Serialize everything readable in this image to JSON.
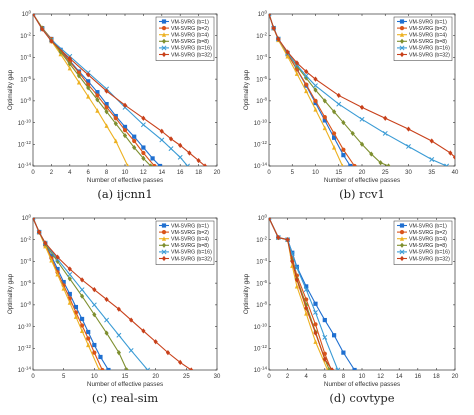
{
  "figure": {
    "legend_entries": [
      "VM-SVRG (b=1)",
      "VM-SVRG (b=2)",
      "VM-SVRG (b=4)",
      "VM-SVRG (b=8)",
      "VM-SVRG (b=16)",
      "VM-SVRG (b=32)"
    ],
    "series_colors": [
      "#1f6fd0",
      "#d95319",
      "#edb120",
      "#7e8f2f",
      "#3a9bd5",
      "#c8401a"
    ],
    "marker_shapes": [
      "square",
      "circle",
      "triangle",
      "diamond",
      "x",
      "diamond"
    ]
  },
  "chart_data": [
    {
      "type": "line",
      "caption": "(a)  ijcnn1",
      "xlabel": "Number of effective passes",
      "ylabel": "Optimality gap",
      "xlim": [
        0,
        20
      ],
      "ylim_log10": [
        -14,
        0
      ],
      "xticks": [
        "0",
        "2",
        "4",
        "6",
        "8",
        "10",
        "12",
        "14",
        "16",
        "18",
        "20"
      ],
      "yticks": [
        "10^0",
        "10^-2",
        "10^-4",
        "10^-6",
        "10^-8",
        "10^-10",
        "10^-12",
        "10^-14"
      ],
      "y_scale": "log",
      "legend": "top-right",
      "series": [
        {
          "name": "VM-SVRG (b=1)",
          "x": [
            0,
            1,
            2,
            3,
            4,
            5,
            6,
            7,
            8,
            9,
            10,
            11,
            12,
            13,
            13.8
          ],
          "y_log10": [
            0,
            -1.3,
            -2.3,
            -3.3,
            -4.3,
            -5.3,
            -6.2,
            -7.2,
            -8.3,
            -9.4,
            -10.4,
            -11.3,
            -12.3,
            -13.3,
            -14
          ]
        },
        {
          "name": "VM-SVRG (b=2)",
          "x": [
            0,
            1,
            2,
            3,
            4,
            5,
            6,
            7,
            8,
            9,
            10,
            11,
            12,
            13.2
          ],
          "y_log10": [
            0,
            -1.3,
            -2.3,
            -3.4,
            -4.4,
            -5.4,
            -6.5,
            -7.5,
            -8.6,
            -9.6,
            -10.7,
            -11.7,
            -12.8,
            -14
          ]
        },
        {
          "name": "VM-SVRG (b=4)",
          "x": [
            0,
            1,
            2,
            3,
            4,
            5,
            6,
            7,
            8,
            9,
            10.3
          ],
          "y_log10": [
            0,
            -1.3,
            -2.5,
            -3.7,
            -5,
            -6.3,
            -7.6,
            -8.9,
            -10.3,
            -11.7,
            -14
          ]
        },
        {
          "name": "VM-SVRG (b=8)",
          "x": [
            0,
            1,
            2,
            3,
            4,
            5,
            6,
            7,
            8,
            9,
            10,
            11,
            12,
            12.8
          ],
          "y_log10": [
            0,
            -1.3,
            -2.4,
            -3.5,
            -4.6,
            -5.7,
            -6.8,
            -7.9,
            -9,
            -10.1,
            -11.2,
            -12.3,
            -13.3,
            -14
          ]
        },
        {
          "name": "VM-SVRG (b=16)",
          "x": [
            0,
            1,
            2,
            4,
            6,
            8,
            10,
            12,
            14,
            15,
            16,
            16.8
          ],
          "y_log10": [
            0,
            -1.4,
            -2.4,
            -3.9,
            -5.4,
            -6.9,
            -8.6,
            -10.2,
            -11.6,
            -12.4,
            -13.2,
            -14
          ]
        },
        {
          "name": "VM-SVRG (b=32)",
          "x": [
            0,
            1,
            2,
            4,
            6,
            8,
            10,
            12,
            14,
            15,
            16,
            17,
            18,
            18.7
          ],
          "y_log10": [
            0,
            -1.4,
            -2.5,
            -4.1,
            -5.6,
            -7.1,
            -8.4,
            -9.6,
            -10.8,
            -11.5,
            -12.1,
            -12.8,
            -13.5,
            -14
          ]
        }
      ]
    },
    {
      "type": "line",
      "caption": "(b)  rcv1",
      "xlabel": "Number of effective passes",
      "ylabel": "Optimality gap",
      "xlim": [
        0,
        40
      ],
      "ylim_log10": [
        -14,
        0
      ],
      "xticks": [
        "0",
        "5",
        "10",
        "15",
        "20",
        "25",
        "30",
        "35",
        "40"
      ],
      "yticks": [
        "10^0",
        "10^-2",
        "10^-4",
        "10^-6",
        "10^-8",
        "10^-10",
        "10^-12",
        "10^-14"
      ],
      "y_scale": "log",
      "legend": "top-right",
      "series": [
        {
          "name": "VM-SVRG (b=1)",
          "x": [
            0,
            1,
            2,
            4,
            6,
            8,
            10,
            12,
            14,
            16,
            17.5
          ],
          "y_log10": [
            0,
            -1.3,
            -2.3,
            -3.7,
            -5.1,
            -6.6,
            -8.2,
            -9.8,
            -11.4,
            -13,
            -14
          ]
        },
        {
          "name": "VM-SVRG (b=2)",
          "x": [
            0,
            1,
            2,
            4,
            6,
            8,
            10,
            12,
            14,
            16,
            18.4
          ],
          "y_log10": [
            0,
            -1.3,
            -2.3,
            -3.7,
            -5.1,
            -6.5,
            -8,
            -9.5,
            -11,
            -12.5,
            -14
          ]
        },
        {
          "name": "VM-SVRG (b=4)",
          "x": [
            0,
            1,
            2,
            4,
            6,
            8,
            10,
            12,
            14,
            15.8
          ],
          "y_log10": [
            0,
            -1.3,
            -2.4,
            -3.9,
            -5.5,
            -7.1,
            -8.8,
            -10.5,
            -12.3,
            -14
          ]
        },
        {
          "name": "VM-SVRG (b=8)",
          "x": [
            0,
            1,
            2,
            4,
            6,
            8,
            10,
            12,
            14,
            16,
            18,
            20,
            22,
            24,
            25.7
          ],
          "y_log10": [
            0,
            -1.3,
            -2.3,
            -3.6,
            -4.8,
            -5.9,
            -7,
            -8,
            -9,
            -10,
            -11,
            -12,
            -12.9,
            -13.7,
            -14
          ]
        },
        {
          "name": "VM-SVRG (b=16)",
          "x": [
            0,
            1,
            2,
            4,
            6,
            8,
            10,
            15,
            20,
            25,
            30,
            35,
            38.2
          ],
          "y_log10": [
            0,
            -1.3,
            -2.3,
            -3.6,
            -4.7,
            -5.7,
            -6.6,
            -8.3,
            -9.7,
            -11,
            -12.2,
            -13.4,
            -14
          ]
        },
        {
          "name": "VM-SVRG (b=32)",
          "x": [
            0,
            1,
            2,
            4,
            6,
            8,
            10,
            15,
            20,
            25,
            30,
            35,
            39,
            40
          ],
          "y_log10": [
            0,
            -1.3,
            -2.3,
            -3.5,
            -4.5,
            -5.3,
            -6,
            -7.5,
            -8.6,
            -9.6,
            -10.6,
            -11.7,
            -12.8,
            -13.2
          ]
        }
      ]
    },
    {
      "type": "line",
      "caption": "(c)  real-sim",
      "xlabel": "Number of effective passes",
      "ylabel": "Optimality gap",
      "xlim": [
        0,
        30
      ],
      "ylim_log10": [
        -14,
        0
      ],
      "xticks": [
        "0",
        "5",
        "10",
        "15",
        "20",
        "25",
        "30"
      ],
      "yticks": [
        "10^0",
        "10^-2",
        "10^-4",
        "10^-6",
        "10^-8",
        "10^-10",
        "10^-12",
        "10^-14"
      ],
      "y_scale": "log",
      "legend": "top-right",
      "series": [
        {
          "name": "VM-SVRG (b=1)",
          "x": [
            0,
            1,
            2,
            3,
            4,
            5,
            6,
            7,
            8,
            9,
            10,
            11,
            12.3
          ],
          "y_log10": [
            0,
            -1.3,
            -2.4,
            -3.5,
            -4.7,
            -5.9,
            -7,
            -8.2,
            -9.3,
            -10.5,
            -11.7,
            -12.8,
            -14
          ]
        },
        {
          "name": "VM-SVRG (b=2)",
          "x": [
            0,
            1,
            2,
            3,
            4,
            5,
            6,
            7,
            8,
            9,
            10,
            11.3
          ],
          "y_log10": [
            0,
            -1.3,
            -2.5,
            -3.7,
            -5,
            -6.2,
            -7.4,
            -8.7,
            -9.9,
            -11.1,
            -12.4,
            -14
          ]
        },
        {
          "name": "VM-SVRG (b=4)",
          "x": [
            0,
            1,
            2,
            3,
            4,
            5,
            6,
            7,
            8,
            9,
            10.8
          ],
          "y_log10": [
            0,
            -1.3,
            -2.6,
            -3.9,
            -5.2,
            -6.5,
            -7.8,
            -9.1,
            -10.4,
            -11.7,
            -14
          ]
        },
        {
          "name": "VM-SVRG (b=8)",
          "x": [
            0,
            1,
            2,
            4,
            6,
            8,
            10,
            12,
            14,
            15.3
          ],
          "y_log10": [
            0,
            -1.3,
            -2.4,
            -4,
            -5.6,
            -7.2,
            -8.9,
            -10.6,
            -12.4,
            -14
          ]
        },
        {
          "name": "VM-SVRG (b=16)",
          "x": [
            0,
            1,
            2,
            4,
            6,
            8,
            10,
            12,
            14,
            16,
            18.7
          ],
          "y_log10": [
            0,
            -1.3,
            -2.3,
            -3.8,
            -5.2,
            -6.6,
            -8,
            -9.4,
            -10.8,
            -12.2,
            -14
          ]
        },
        {
          "name": "VM-SVRG (b=32)",
          "x": [
            0,
            1,
            2,
            4,
            6,
            8,
            10,
            12,
            14,
            16,
            18,
            20,
            22,
            24,
            25.8
          ],
          "y_log10": [
            0,
            -1.3,
            -2.3,
            -3.6,
            -4.7,
            -5.7,
            -6.6,
            -7.5,
            -8.4,
            -9.4,
            -10.4,
            -11.4,
            -12.4,
            -13.3,
            -14
          ]
        }
      ]
    },
    {
      "type": "line",
      "caption": "(d)  covtype",
      "xlabel": "Number of effective passes",
      "ylabel": "Optimality gap",
      "xlim": [
        0,
        20
      ],
      "ylim_log10": [
        -14,
        0
      ],
      "xticks": [
        "0",
        "2",
        "4",
        "6",
        "8",
        "10",
        "12",
        "14",
        "16",
        "18",
        "20"
      ],
      "yticks": [
        "10^0",
        "10^-2",
        "10^-4",
        "10^-6",
        "10^-8",
        "10^-10",
        "10^-12",
        "10^-14"
      ],
      "y_scale": "log",
      "legend": "top-right",
      "series": [
        {
          "name": "VM-SVRG (b=1)",
          "x": [
            0,
            1,
            2,
            2.5,
            3,
            4,
            5,
            6,
            7,
            8,
            9.2
          ],
          "y_log10": [
            0,
            -1.8,
            -2,
            -3.2,
            -4.5,
            -6.3,
            -7.9,
            -9.4,
            -10.8,
            -12.4,
            -14
          ]
        },
        {
          "name": "VM-SVRG (b=2)",
          "x": [
            0,
            1,
            2,
            2.5,
            3,
            4,
            5,
            6,
            6.7
          ],
          "y_log10": [
            0,
            -1.8,
            -2,
            -3.7,
            -5.3,
            -7.5,
            -9.8,
            -12.5,
            -14
          ]
        },
        {
          "name": "VM-SVRG (b=4)",
          "x": [
            0,
            1,
            2,
            2.5,
            3,
            4,
            5,
            6.3
          ],
          "y_log10": [
            0,
            -1.8,
            -2,
            -4.4,
            -6.3,
            -8.8,
            -11.4,
            -14
          ]
        },
        {
          "name": "VM-SVRG (b=8)",
          "x": [
            0,
            1,
            2,
            2.5,
            3,
            4,
            5,
            6,
            6.5
          ],
          "y_log10": [
            0,
            -1.8,
            -2,
            -3.9,
            -5.6,
            -8,
            -10.5,
            -13,
            -14
          ]
        },
        {
          "name": "VM-SVRG (b=16)",
          "x": [
            0,
            1,
            2,
            2.5,
            3,
            4,
            5,
            6,
            7.4
          ],
          "y_log10": [
            0,
            -1.8,
            -2,
            -3.3,
            -4.6,
            -6.6,
            -8.7,
            -11,
            -14
          ]
        },
        {
          "name": "VM-SVRG (b=32)",
          "x": [
            0,
            1,
            2,
            2.5,
            3,
            4,
            5,
            6,
            6.8
          ],
          "y_log10": [
            0,
            -1.8,
            -2,
            -4,
            -5.7,
            -8.3,
            -10.6,
            -13,
            -14
          ]
        }
      ]
    }
  ]
}
